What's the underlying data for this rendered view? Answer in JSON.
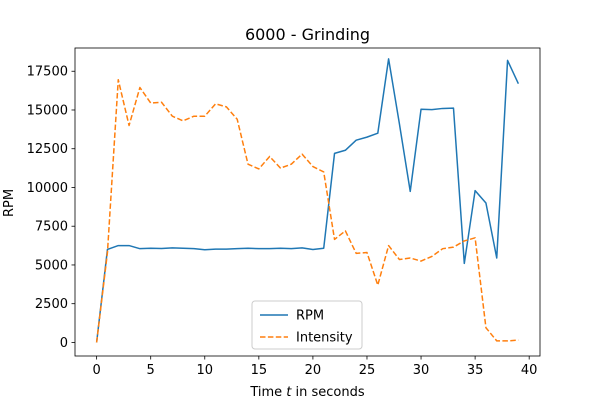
{
  "chart_data": {
    "type": "line",
    "title": "6000 - Grinding",
    "xlabel_prefix": "Time ",
    "xlabel_var": "t",
    "xlabel_suffix": " in seconds",
    "ylabel": "RPM",
    "xlim": [
      -2,
      41
    ],
    "ylim": [
      -875,
      19000
    ],
    "xticks": [
      0,
      5,
      10,
      15,
      20,
      25,
      30,
      35,
      40
    ],
    "yticks": [
      0,
      2500,
      5000,
      7500,
      10000,
      12500,
      15000,
      17500
    ],
    "grid": false,
    "legend_position": "bottom-center",
    "x": [
      0,
      1,
      2,
      3,
      4,
      5,
      6,
      7,
      8,
      9,
      10,
      11,
      12,
      13,
      14,
      15,
      16,
      17,
      18,
      19,
      20,
      21,
      22,
      23,
      24,
      25,
      26,
      27,
      28,
      29,
      30,
      31,
      32,
      33,
      34,
      35,
      36,
      37,
      38,
      39
    ],
    "series": [
      {
        "name": "RPM",
        "color": "#1f77b4",
        "style": "solid",
        "values": [
          0,
          6000,
          6250,
          6250,
          6050,
          6080,
          6060,
          6100,
          6080,
          6050,
          5980,
          6020,
          6020,
          6050,
          6080,
          6050,
          6050,
          6080,
          6050,
          6100,
          6000,
          6080,
          12200,
          12400,
          13050,
          13250,
          13500,
          18300,
          14100,
          9750,
          15050,
          15020,
          15100,
          15120,
          5100,
          9800,
          9000,
          5450,
          18200,
          16700
        ]
      },
      {
        "name": "Intensity",
        "color": "#ff7f0e",
        "style": "dashed",
        "values": [
          0,
          5800,
          16950,
          14000,
          16450,
          15450,
          15500,
          14600,
          14300,
          14600,
          14600,
          15400,
          15200,
          14400,
          11500,
          11200,
          12000,
          11250,
          11500,
          12150,
          11350,
          11000,
          6650,
          7200,
          5750,
          5800,
          3700,
          6250,
          5350,
          5450,
          5250,
          5550,
          6050,
          6150,
          6550,
          6750,
          950,
          100,
          100,
          150
        ]
      }
    ]
  }
}
